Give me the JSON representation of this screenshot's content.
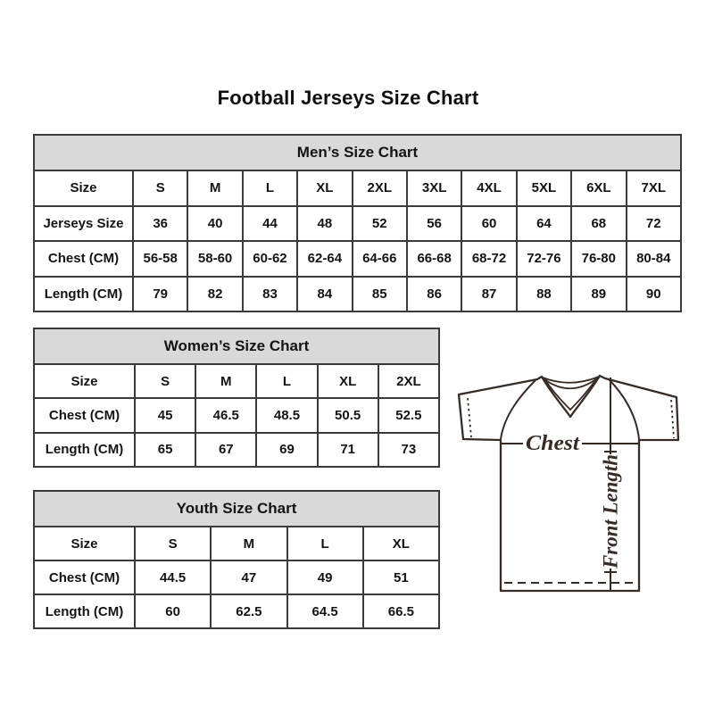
{
  "page": {
    "title": "Football Jerseys Size Chart"
  },
  "chart_data": [
    {
      "type": "table",
      "title": "Men’s Size Chart",
      "rows": [
        [
          "Size",
          "S",
          "M",
          "L",
          "XL",
          "2XL",
          "3XL",
          "4XL",
          "5XL",
          "6XL",
          "7XL"
        ],
        [
          "Jerseys Size",
          "36",
          "40",
          "44",
          "48",
          "52",
          "56",
          "60",
          "64",
          "68",
          "72"
        ],
        [
          "Chest (CM)",
          "56-58",
          "58-60",
          "60-62",
          "62-64",
          "64-66",
          "66-68",
          "68-72",
          "72-76",
          "76-80",
          "80-84"
        ],
        [
          "Length (CM)",
          "79",
          "82",
          "83",
          "84",
          "85",
          "86",
          "87",
          "88",
          "89",
          "90"
        ]
      ]
    },
    {
      "type": "table",
      "title": "Women’s Size Chart",
      "rows": [
        [
          "Size",
          "S",
          "M",
          "L",
          "XL",
          "2XL"
        ],
        [
          "Chest (CM)",
          "45",
          "46.5",
          "48.5",
          "50.5",
          "52.5"
        ],
        [
          "Length (CM)",
          "65",
          "67",
          "69",
          "71",
          "73"
        ]
      ]
    },
    {
      "type": "table",
      "title": "Youth Size Chart",
      "rows": [
        [
          "Size",
          "S",
          "M",
          "L",
          "XL"
        ],
        [
          "Chest (CM)",
          "44.5",
          "47",
          "49",
          "51"
        ],
        [
          "Length (CM)",
          "60",
          "62.5",
          "64.5",
          "66.5"
        ]
      ]
    }
  ],
  "diagram": {
    "chest_label": "Chest",
    "front_length_label": "Front Length"
  },
  "colors": {
    "table_border": "#3a3a3a",
    "table_header_bg": "#d9d9d9",
    "text": "#141414",
    "jersey_outline": "#382b24"
  }
}
